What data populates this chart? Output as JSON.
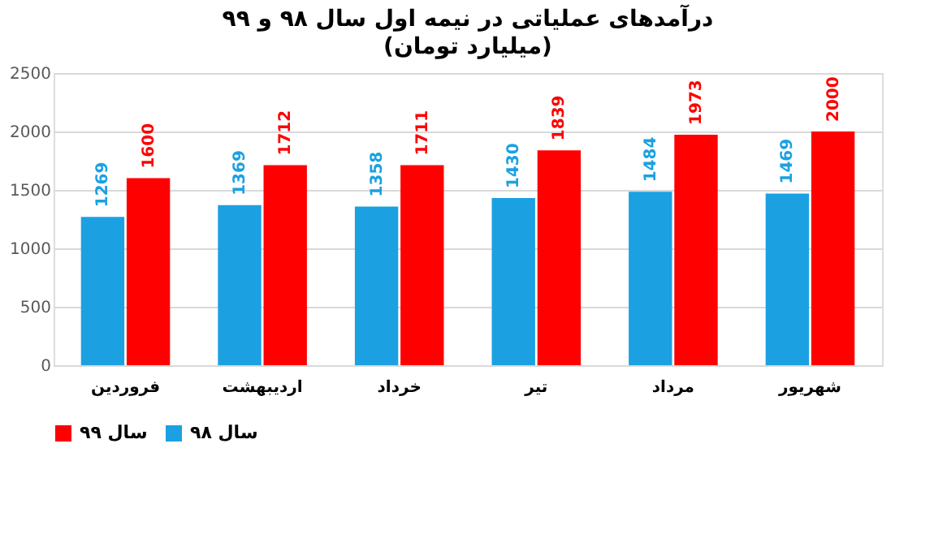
{
  "chart_data": {
    "type": "bar",
    "title": "درآمدهای عملیاتی در نیمه اول سال ۹۸ و ۹۹",
    "subtitle": "(میلیارد تومان)",
    "categories": [
      "فروردین",
      "اردیبهشت",
      "خرداد",
      "تیر",
      "مرداد",
      "شهریور"
    ],
    "series": [
      {
        "name": "سال ۹۸",
        "color": "#1ba1e2",
        "values": [
          1269,
          1369,
          1358,
          1430,
          1484,
          1469
        ]
      },
      {
        "name": "سال ۹۹",
        "color": "#ff0000",
        "values": [
          1600,
          1712,
          1711,
          1839,
          1973,
          2000
        ]
      }
    ],
    "ylim": [
      0,
      2500
    ],
    "yticks": [
      0,
      500,
      1000,
      1500,
      2000,
      2500
    ],
    "grid": "y",
    "legend": "bottom",
    "data_labels": true
  }
}
